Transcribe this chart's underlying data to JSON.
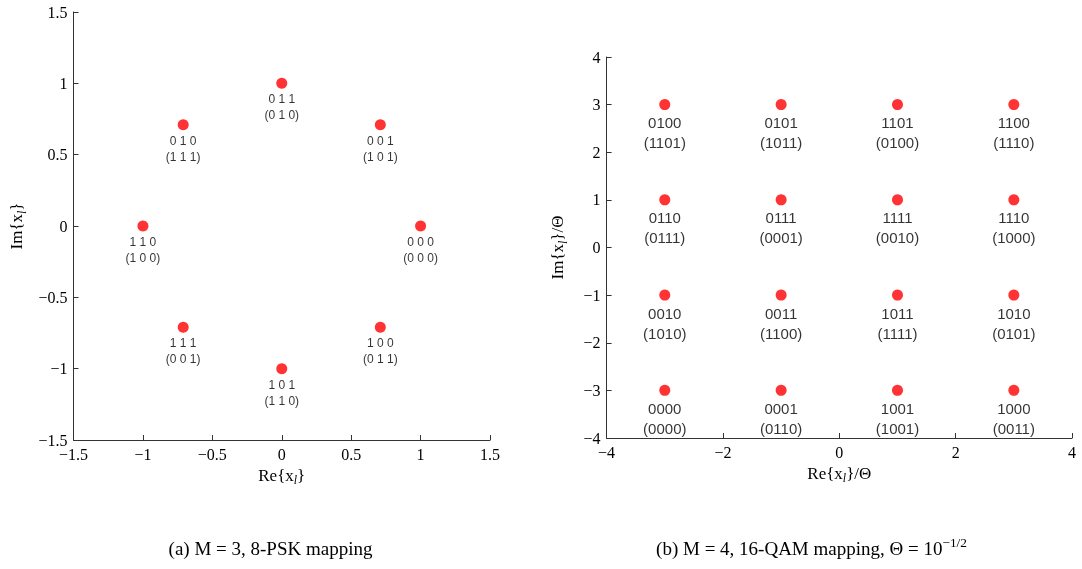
{
  "chart_data": [
    {
      "type": "scatter",
      "title": "(a) M = 3, 8-PSK mapping",
      "xlabel": "Re{x$_{l}$}",
      "ylabel": "Im{x$_{l}$}",
      "color": "#ff0000",
      "marker": "circle",
      "grid": false,
      "x": [
        1,
        0.71,
        0,
        -0.71,
        -1,
        -0.71,
        0,
        0.71
      ],
      "values": [
        0,
        0.71,
        1,
        0.71,
        0,
        -0.71,
        -1,
        -0.71
      ],
      "xlim": [
        -1.5,
        1.5
      ],
      "ylim": [
        -1.5,
        1.5
      ],
      "xticks": [
        -1.5,
        -1,
        -0.5,
        0,
        0.5,
        1,
        1.5
      ],
      "yticks": [
        -1.5,
        -1,
        -0.5,
        0,
        0.5,
        1,
        1.5
      ],
      "annotations": [
        {
          "text": "0 0 0\n(0 0 0)",
          "x": 1,
          "y": 0
        },
        {
          "text": "0 0 1\n(1 0 1)",
          "x": 0.71,
          "y": 0.71
        },
        {
          "text": "0 1 1\n(0 1 0)",
          "x": 0,
          "y": 1
        },
        {
          "text": "0 1 0\n(1 1 1)",
          "x": -0.71,
          "y": 0.71
        },
        {
          "text": "1 1 0\n(1 0 0)",
          "x": -1,
          "y": 0
        },
        {
          "text": "1 1 1\n(0 0 1)",
          "x": -0.71,
          "y": -0.71
        },
        {
          "text": "1 0 1\n(1 1 0)",
          "x": 0,
          "y": -1
        },
        {
          "text": "1 0 0\n(0 1 1)",
          "x": 0.71,
          "y": -0.71
        }
      ]
    },
    {
      "type": "scatter",
      "title": "(b) M = 4, 16-QAM mapping, Θ = 10$^{−1/2}$",
      "xlabel": "Re{x$_{l}$}/Θ",
      "ylabel": "Im{x$_{l}$}/Θ",
      "color": "#ff0000",
      "marker": "circle",
      "grid": false,
      "x": [
        -3,
        -1,
        1,
        3,
        -3,
        -1,
        1,
        3,
        -3,
        -1,
        1,
        3,
        -3,
        -1,
        1,
        3
      ],
      "values": [
        3,
        3,
        3,
        3,
        1,
        1,
        1,
        1,
        -1,
        -1,
        -1,
        -1,
        -3,
        -3,
        -3,
        -3
      ],
      "xlim": [
        -4,
        4
      ],
      "ylim": [
        -4,
        4
      ],
      "xticks": [
        -4,
        -2,
        0,
        2,
        4
      ],
      "yticks": [
        -4,
        -3,
        -2,
        -1,
        0,
        1,
        2,
        3,
        4
      ],
      "annotations": [
        {
          "text": "0100\n(1101)",
          "x": -3,
          "y": 3
        },
        {
          "text": "0101\n(1011)",
          "x": -1,
          "y": 3
        },
        {
          "text": "1101\n(0100)",
          "x": 1,
          "y": 3
        },
        {
          "text": "1100\n(1110)",
          "x": 3,
          "y": 3
        },
        {
          "text": "0110\n(0111)",
          "x": -3,
          "y": 1
        },
        {
          "text": "0111\n(0001)",
          "x": -1,
          "y": 1
        },
        {
          "text": "1111\n(0010)",
          "x": 1,
          "y": 1
        },
        {
          "text": "1110\n(1000)",
          "x": 3,
          "y": 1
        },
        {
          "text": "0010\n(1010)",
          "x": -3,
          "y": -1
        },
        {
          "text": "0011\n(1100)",
          "x": -1,
          "y": -1
        },
        {
          "text": "1011\n(1111)",
          "x": 1,
          "y": -1
        },
        {
          "text": "1010\n(0101)",
          "x": 3,
          "y": -1
        },
        {
          "text": "0000\n(0000)",
          "x": -3,
          "y": -3
        },
        {
          "text": "0001\n(0110)",
          "x": -1,
          "y": -3
        },
        {
          "text": "1001\n(1001)",
          "x": 1,
          "y": -3
        },
        {
          "text": "1000\n(0011)",
          "x": 3,
          "y": -3
        }
      ]
    }
  ]
}
